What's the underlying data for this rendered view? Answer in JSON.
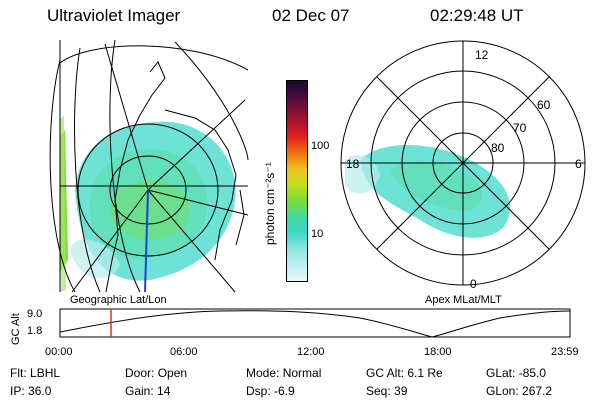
{
  "header": {
    "instrument": "Ultraviolet Imager",
    "date": "02 Dec 07",
    "time": "02:29:48 UT"
  },
  "left_panel": {
    "caption": "Geographic Lat/Lon"
  },
  "colorbar": {
    "unit_label": "photon cm⁻²s⁻¹",
    "ticks": [
      "100",
      "10"
    ]
  },
  "right_panel": {
    "caption": "Apex MLat/MLT",
    "mlt_labels": [
      "12",
      "18",
      "6",
      "0"
    ],
    "mlat_labels": [
      "60",
      "70",
      "80"
    ]
  },
  "altitude_plot": {
    "ylabel": "GC Alt",
    "yticks": [
      "9.0",
      "1.8"
    ],
    "xticks": [
      "00:00",
      "06:00",
      "12:00",
      "18:00",
      "23:59"
    ],
    "current_time_fraction": 0.1
  },
  "info": {
    "row1": [
      {
        "label": "Flt:",
        "value": "LBHL"
      },
      {
        "label": "Door:",
        "value": "Open"
      },
      {
        "label": "Mode:",
        "value": "Normal"
      },
      {
        "label": "GC Alt:",
        "value": "6.1 Re"
      },
      {
        "label": "GLat:",
        "value": "-85.0"
      }
    ],
    "row2": [
      {
        "label": "IP:",
        "value": "36.0"
      },
      {
        "label": "Gain:",
        "value": "14"
      },
      {
        "label": "Dsp:",
        "value": "-6.9"
      },
      {
        "label": "Seq:",
        "value": "39"
      },
      {
        "label": "GLon:",
        "value": "267.2"
      }
    ]
  },
  "colors": {
    "aurora_cyan": "#3fd8c8",
    "aurora_green": "#7cdc3a",
    "marker_red": "#e03020",
    "meridian_blue": "#2040d0"
  }
}
